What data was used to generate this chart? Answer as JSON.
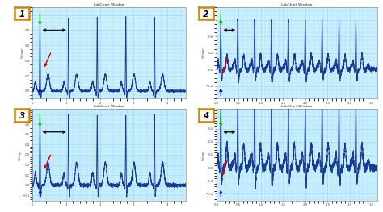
{
  "panel_titles": [
    "LabChart Window",
    "LabChart Window",
    "LabChart Window",
    "LabChart Window"
  ],
  "panel_labels": [
    "1",
    "2",
    "3",
    "4"
  ],
  "panel_label_border_color": "#d4820a",
  "bg_color": "#cceeff",
  "grid_color": "#88ddee",
  "ecg_color": "#1a3a9a",
  "arrow_green": "#00bb00",
  "arrow_black": "#111111",
  "arrow_red": "#dd0000",
  "arrow_blue": "#0000cc",
  "panel1_ylim": [
    -0.1,
    1.1
  ],
  "panel2_ylim": [
    -0.35,
    0.75
  ],
  "panel3_ylim": [
    -0.15,
    0.75
  ],
  "panel4_ylim": [
    -0.25,
    0.45
  ],
  "panel1_n_beats": 5,
  "panel2_n_beats": 9,
  "panel3_n_beats": 5,
  "panel4_n_beats": 9,
  "panel1_rr": 0.85,
  "panel2_rr": 0.38,
  "panel3_rr": 0.85,
  "panel4_rr": 0.38
}
